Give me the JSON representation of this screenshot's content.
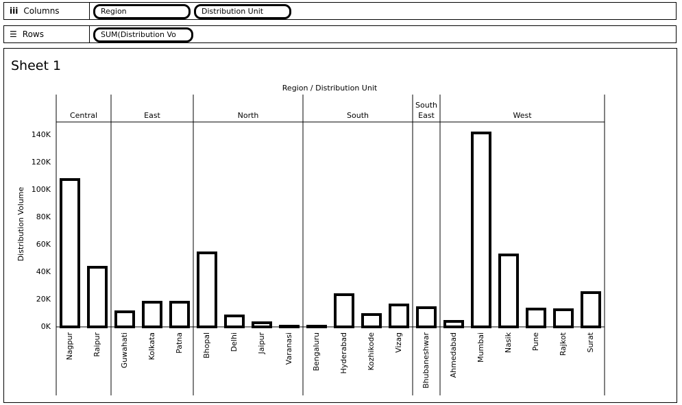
{
  "shelves": {
    "columns": {
      "label": "Columns",
      "pills": [
        "Region",
        "Distribution Unit"
      ]
    },
    "rows": {
      "label": "Rows",
      "pills": [
        "SUM(Distribution Vo"
      ]
    }
  },
  "sheet_title": "Sheet 1",
  "chart_data": {
    "type": "bar",
    "title": "Region / Distribution Unit",
    "y_label": "Distribution Volume",
    "groups": [
      {
        "label": "Central",
        "categories": [
          "Nagpur",
          "Raipur"
        ],
        "values": [
          107500,
          43500
        ]
      },
      {
        "label": "East",
        "categories": [
          "Guwahati",
          "Kolkata",
          "Patna"
        ],
        "values": [
          11000,
          18000,
          18000
        ]
      },
      {
        "label": "North",
        "categories": [
          "Bhopal",
          "Delhi",
          "Jaipur",
          "Varanasi"
        ],
        "values": [
          54000,
          8000,
          3000,
          500
        ]
      },
      {
        "label": "South",
        "categories": [
          "Bengaluru",
          "Hyderabad",
          "Kozhikode",
          "Vizag"
        ],
        "values": [
          500,
          23500,
          9000,
          16000
        ]
      },
      {
        "label": "South East",
        "categories": [
          "Bhubaneshwar"
        ],
        "values": [
          14000
        ]
      },
      {
        "label": "West",
        "categories": [
          "Ahmedabad",
          "Mumbai",
          "Nasik",
          "Pune",
          "Rajkot",
          "Surat"
        ],
        "values": [
          4000,
          141500,
          52500,
          13000,
          12500,
          25000
        ]
      }
    ],
    "color": "#000000",
    "ylim": [
      0,
      148500
    ],
    "yticks": [
      {
        "value": 0,
        "label": "0K"
      },
      {
        "value": 20000,
        "label": "20K"
      },
      {
        "value": 40000,
        "label": "40K"
      },
      {
        "value": 60000,
        "label": "60K"
      },
      {
        "value": 80000,
        "label": "80K"
      },
      {
        "value": 100000,
        "label": "100K"
      },
      {
        "value": 120000,
        "label": "120K"
      },
      {
        "value": 140000,
        "label": "140K"
      }
    ],
    "grid": false
  }
}
